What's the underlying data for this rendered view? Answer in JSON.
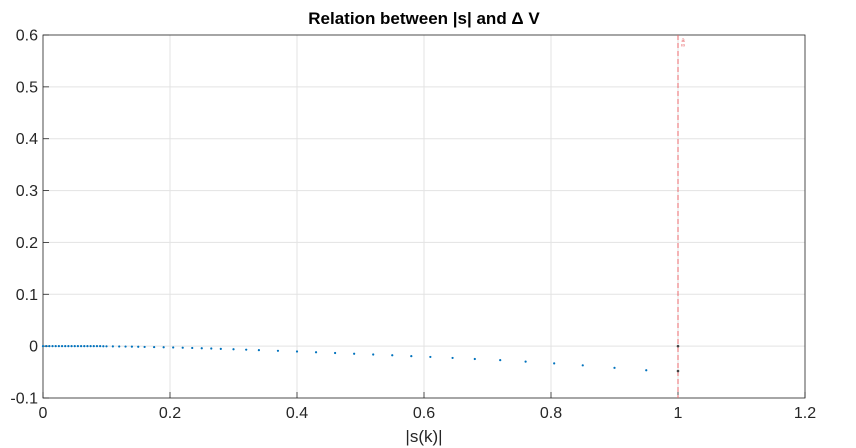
{
  "chart_data": {
    "type": "scatter",
    "title": "Relation  between  |s|  and  Δ  V",
    "xlabel": "|s(k)|",
    "ylabel": "",
    "xlim": [
      0,
      1.2
    ],
    "ylim": [
      -0.1,
      0.6
    ],
    "xticks": [
      "0",
      "0.2",
      "0.4",
      "0.6",
      "0.8",
      "1",
      "1.2"
    ],
    "yticks": [
      "-0.1",
      "0",
      "0.1",
      "0.2",
      "0.3",
      "0.4",
      "0.5",
      "0.6"
    ],
    "grid": true,
    "colors": {
      "points": "#0072BD",
      "reference": "#E8676B",
      "outlier": "#404040"
    },
    "series": [
      {
        "x": [
          0.0,
          0.005,
          0.01,
          0.015,
          0.02,
          0.025,
          0.03,
          0.035,
          0.04,
          0.045,
          0.05,
          0.055,
          0.06,
          0.065,
          0.07,
          0.075,
          0.08,
          0.085,
          0.09,
          0.095,
          0.1,
          0.11,
          0.12,
          0.13,
          0.14,
          0.15,
          0.16,
          0.175,
          0.19,
          0.205,
          0.22,
          0.235,
          0.25,
          0.265,
          0.28,
          0.3,
          0.32,
          0.34,
          0.37,
          0.4,
          0.43,
          0.46,
          0.49,
          0.52,
          0.55,
          0.58,
          0.61,
          0.645,
          0.68,
          0.72,
          0.76,
          0.805,
          0.85,
          0.9,
          0.95
        ],
        "y": [
          0.0,
          0.0,
          0.0,
          0.0,
          0.0,
          0.0,
          0.0,
          0.0,
          0.0,
          0.0,
          0.0,
          0.0,
          0.0,
          0.0,
          0.0,
          0.0,
          0.0,
          0.0,
          0.0,
          -0.0002,
          -0.0003,
          -0.0004,
          -0.0006,
          -0.0008,
          -0.001,
          -0.0012,
          -0.0015,
          -0.0018,
          -0.0021,
          -0.0025,
          -0.003,
          -0.0035,
          -0.004,
          -0.0046,
          -0.0052,
          -0.006,
          -0.0068,
          -0.0077,
          -0.009,
          -0.0104,
          -0.0118,
          -0.0132,
          -0.0146,
          -0.0161,
          -0.0176,
          -0.0192,
          -0.0208,
          -0.0227,
          -0.0248,
          -0.027,
          -0.0298,
          -0.0333,
          -0.037,
          -0.0418,
          -0.0465
        ]
      }
    ],
    "reference_line": {
      "x": 1.0,
      "style": "dashed"
    },
    "outliers": [
      {
        "x": 1.0,
        "y": 0.0
      },
      {
        "x": 1.0,
        "y": -0.048
      }
    ],
    "annotation": {
      "x": 1.0,
      "y": 0.584,
      "lines": [
        "a",
        "∞"
      ]
    }
  }
}
